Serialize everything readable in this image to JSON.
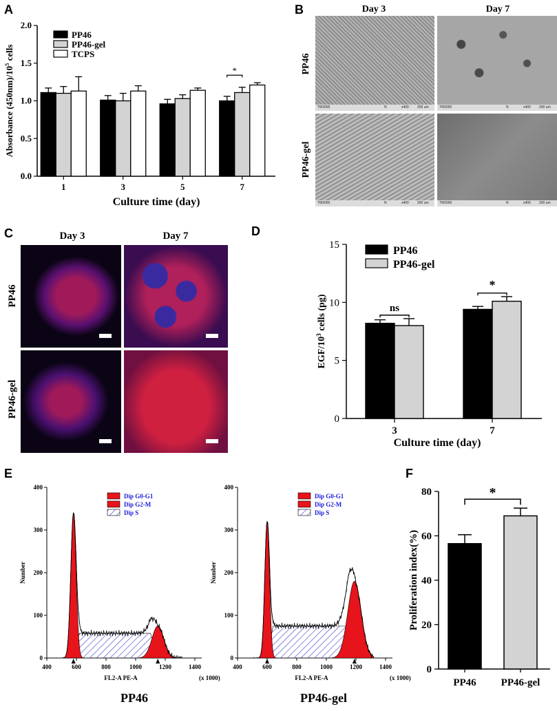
{
  "panels": {
    "A": {
      "label": "A"
    },
    "B": {
      "label": "B",
      "columns": [
        "Day 3",
        "Day 7"
      ],
      "rows": [
        "PP46",
        "PP46-gel"
      ],
      "sem_footer": {
        "instrument": "TM3000",
        "mode": "N",
        "mag": "x400",
        "scale": "200 um"
      }
    },
    "C": {
      "label": "C",
      "columns": [
        "Day 3",
        "Day 7"
      ],
      "rows": [
        "PP46",
        "PP46-gel"
      ]
    },
    "D": {
      "label": "D"
    },
    "E": {
      "label": "E",
      "legend": [
        "Dip G0-G1",
        "Dip G2-M",
        "Dip S"
      ],
      "ylabel": "Number",
      "xlabel": "FL2-A PE-A",
      "left": {
        "x_unit": "(x 1000)",
        "title": "PP46"
      },
      "right": {
        "x_unit": "(x 1000)",
        "title": "PP46-gel"
      },
      "x_ticks": [
        "400",
        "600",
        "800",
        "1000",
        "1200",
        "1400"
      ],
      "y_ticks": [
        "0",
        "100",
        "200",
        "300",
        "400"
      ]
    },
    "F": {
      "label": "F"
    }
  },
  "colors": {
    "black": "#000000",
    "grey": "#d3d3d3",
    "white": "#ffffff",
    "red": "#e8141b",
    "hatch": "#3a3ad0",
    "legend_text": "#1a1ad8"
  },
  "chart_data": [
    {
      "id": "A",
      "type": "bar",
      "categories": [
        "1",
        "3",
        "5",
        "7"
      ],
      "series": [
        {
          "name": "PP46",
          "values": [
            1.11,
            1.01,
            0.96,
            1.0
          ],
          "errors": [
            0.06,
            0.06,
            0.06,
            0.06
          ],
          "fill": "#000000"
        },
        {
          "name": "PP46-gel",
          "values": [
            1.1,
            1.0,
            1.03,
            1.11
          ],
          "errors": [
            0.09,
            0.1,
            0.05,
            0.07
          ],
          "fill": "#d3d3d3"
        },
        {
          "name": "TCPS",
          "values": [
            1.13,
            1.13,
            1.14,
            1.21
          ],
          "errors": [
            0.19,
            0.07,
            0.03,
            0.03
          ],
          "fill": "#ffffff"
        }
      ],
      "ylabel_main": "Absorbance (450nm)/10",
      "ylabel_sup": "5",
      "ylabel_tail": " cells",
      "xlabel": "Culture time (day)",
      "ylim": [
        0,
        2.0
      ],
      "yticks": [
        "0.0",
        "0.5",
        "1.0",
        "1.5",
        "2.0"
      ],
      "annotation": "*"
    },
    {
      "id": "D",
      "type": "bar",
      "categories": [
        "3",
        "7"
      ],
      "series": [
        {
          "name": "PP46",
          "values": [
            8.2,
            9.4
          ],
          "errors": [
            0.3,
            0.25
          ],
          "fill": "#000000"
        },
        {
          "name": "PP46-gel",
          "values": [
            8.0,
            10.1
          ],
          "errors": [
            0.6,
            0.4
          ],
          "fill": "#d3d3d3"
        }
      ],
      "ylabel_main": "EGF/10",
      "ylabel_sup": "3",
      "ylabel_tail": " cells (pg)",
      "xlabel": "Culture time (day)",
      "ylim": [
        0,
        15
      ],
      "yticks": [
        "0",
        "5",
        "10",
        "15"
      ],
      "annotations": [
        "ns",
        "*"
      ]
    },
    {
      "id": "F",
      "type": "bar",
      "categories": [
        "PP46",
        "PP46-gel"
      ],
      "values": [
        56.5,
        69.0
      ],
      "errors": [
        4.0,
        3.5
      ],
      "fills": [
        "#000000",
        "#d3d3d3"
      ],
      "ylabel": "Proliferation index(%)",
      "ylim": [
        0,
        80
      ],
      "yticks": [
        "0",
        "20",
        "40",
        "60",
        "80"
      ],
      "annotation": "*"
    }
  ]
}
